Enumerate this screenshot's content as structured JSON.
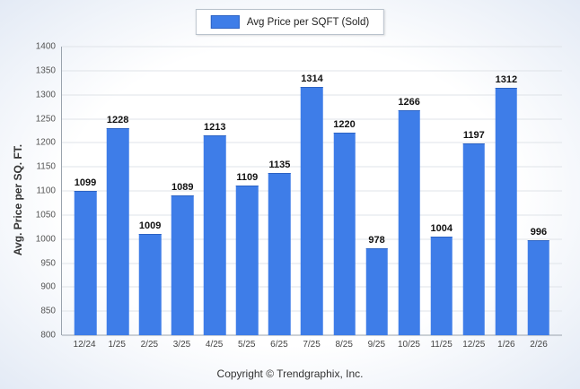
{
  "legend": {
    "label": "Avg Price per SQFT (Sold)"
  },
  "footer": {
    "copyright": "Copyright © Trendgraphix, Inc."
  },
  "chart_data": {
    "type": "bar",
    "title": "",
    "legend": "Avg Price per SQFT (Sold)",
    "legend_position": "top-center",
    "xlabel": "",
    "ylabel": "Avg. Price per SQ. FT.",
    "categories": [
      "12/24",
      "1/25",
      "2/25",
      "3/25",
      "4/25",
      "5/25",
      "6/25",
      "7/25",
      "8/25",
      "9/25",
      "10/25",
      "11/25",
      "12/25",
      "1/26",
      "2/26"
    ],
    "values": [
      1099,
      1228,
      1009,
      1089,
      1213,
      1109,
      1135,
      1314,
      1220,
      978,
      1266,
      1004,
      1197,
      1312,
      996
    ],
    "ylim": [
      800,
      1400
    ],
    "yticks": [
      800,
      850,
      900,
      950,
      1000,
      1050,
      1100,
      1150,
      1200,
      1250,
      1300,
      1350,
      1400
    ],
    "grid": true,
    "bar_color": "#3e7de8",
    "bar_border_color": "#2b62c4"
  }
}
